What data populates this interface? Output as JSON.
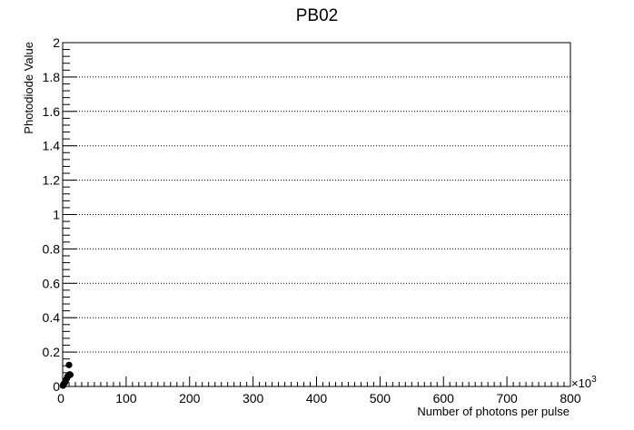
{
  "chart_data": {
    "type": "scatter",
    "title": "PB02",
    "xlabel": "Number of photons per pulse",
    "ylabel": "Photodiode Value",
    "x_multiplier_label": "×10",
    "x_multiplier_exponent": "3",
    "xlim": [
      0,
      800
    ],
    "ylim": [
      0,
      2
    ],
    "x_ticks": [
      0,
      100,
      200,
      300,
      400,
      500,
      600,
      700,
      800
    ],
    "y_ticks": [
      0,
      0.2,
      0.4,
      0.6,
      0.8,
      1,
      1.2,
      1.4,
      1.6,
      1.8,
      2
    ],
    "x_tick_labels": [
      "0",
      "100",
      "200",
      "300",
      "400",
      "500",
      "600",
      "700",
      "800"
    ],
    "y_tick_labels": [
      "0",
      "0.2",
      "0.4",
      "0.6",
      "0.8",
      "1",
      "1.2",
      "1.4",
      "1.6",
      "1.8",
      "2"
    ],
    "grid": "horizontal dotted",
    "series": [
      {
        "color": "#000000",
        "points": [
          {
            "x": 0.5,
            "y": 0.005
          },
          {
            "x": 1.0,
            "y": 0.01
          },
          {
            "x": 1.5,
            "y": 0.012
          },
          {
            "x": 2.5,
            "y": 0.018
          },
          {
            "x": 4.0,
            "y": 0.025
          },
          {
            "x": 5.5,
            "y": 0.04
          },
          {
            "x": 7.0,
            "y": 0.05
          },
          {
            "x": 8.0,
            "y": 0.06
          },
          {
            "x": 9.5,
            "y": 0.065
          },
          {
            "x": 11.0,
            "y": 0.07
          },
          {
            "x": 12.0,
            "y": 0.068
          },
          {
            "x": 10.0,
            "y": 0.125
          }
        ]
      }
    ]
  }
}
